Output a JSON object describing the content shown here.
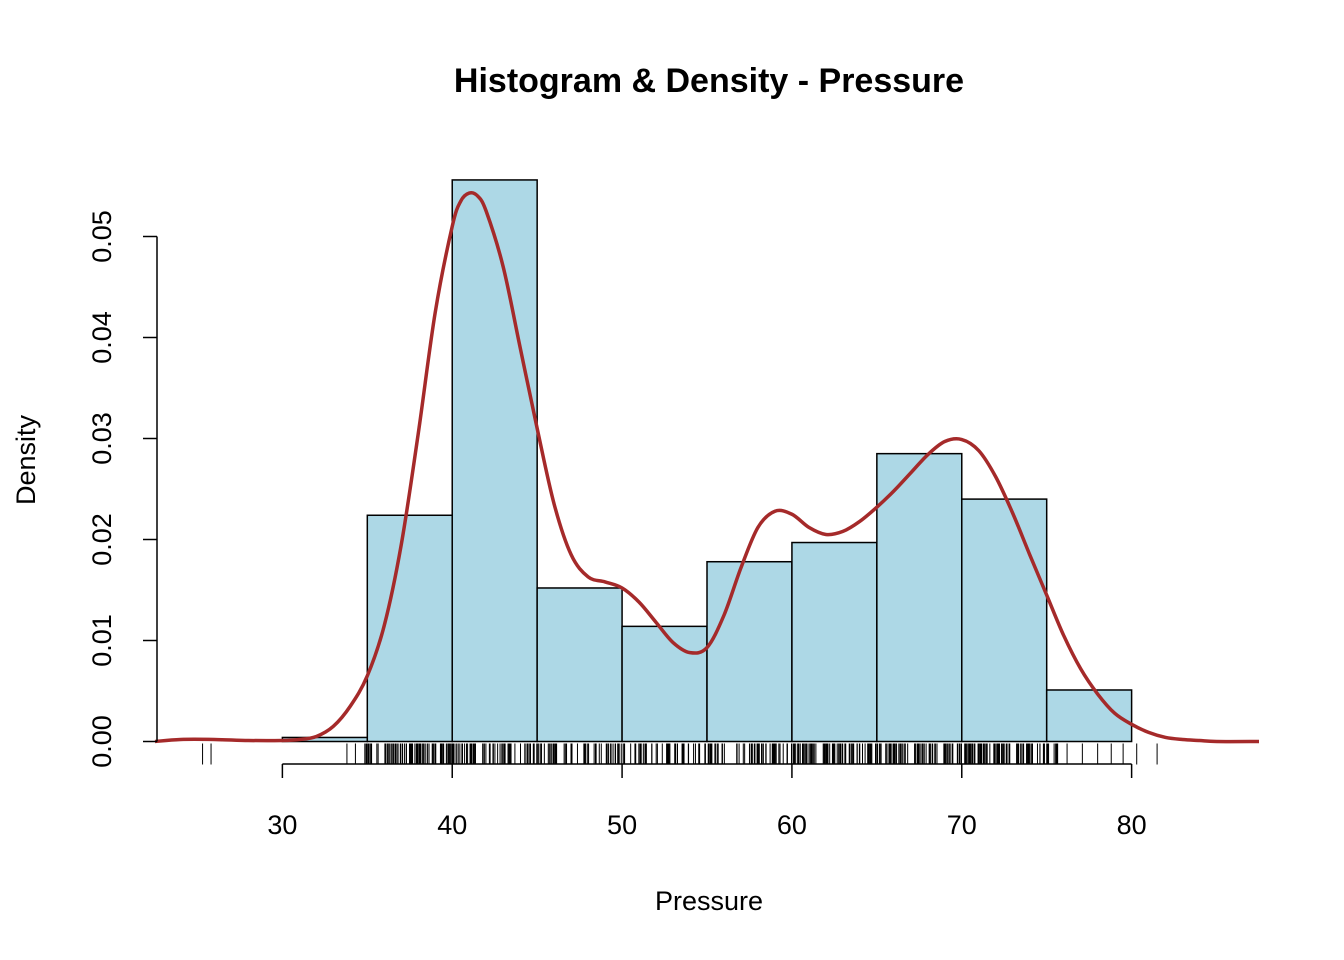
{
  "chart_data": {
    "type": "bar",
    "title": "Histogram & Density - Pressure",
    "xlabel": "Pressure",
    "ylabel": "Density",
    "xlim": [
      22.5,
      87.5
    ],
    "ylim": [
      0,
      0.058
    ],
    "x_ticks": [
      30,
      40,
      50,
      60,
      70,
      80
    ],
    "x_tick_labels": [
      "30",
      "40",
      "50",
      "60",
      "70",
      "80"
    ],
    "y_ticks": [
      0,
      0.01,
      0.02,
      0.03,
      0.04,
      0.05
    ],
    "y_tick_labels": [
      "0.00",
      "0.01",
      "0.02",
      "0.03",
      "0.04",
      "0.05"
    ],
    "grid": false,
    "histogram": {
      "bins": [
        [
          30,
          35
        ],
        [
          35,
          40
        ],
        [
          40,
          45
        ],
        [
          45,
          50
        ],
        [
          50,
          55
        ],
        [
          55,
          60
        ],
        [
          60,
          65
        ],
        [
          65,
          70
        ],
        [
          70,
          75
        ],
        [
          75,
          80
        ]
      ],
      "values": [
        0.0004,
        0.0224,
        0.0556,
        0.0152,
        0.0114,
        0.0178,
        0.0197,
        0.0285,
        0.024,
        0.0051
      ],
      "fill_color": "#ADD8E6",
      "border_color": "#000000"
    },
    "density": {
      "color": "#A52A2A",
      "x": [
        22.5,
        24,
        26,
        28,
        30,
        31,
        32,
        33,
        34,
        35,
        36,
        37,
        38,
        39,
        40,
        40.5,
        41,
        41.5,
        42,
        43,
        44,
        45,
        46,
        47,
        48,
        49,
        50,
        51,
        52,
        53,
        54,
        55,
        56,
        57,
        58,
        59,
        60,
        61,
        62,
        63,
        64,
        65,
        66,
        67,
        68,
        69,
        70,
        71,
        72,
        73,
        74,
        75,
        76,
        77,
        78,
        79,
        80,
        81,
        82,
        83,
        84,
        85,
        87.5
      ],
      "y": [
        0.0,
        0.0002,
        0.0002,
        0.0001,
        0.0001,
        0.0002,
        0.0005,
        0.0015,
        0.0035,
        0.0065,
        0.0115,
        0.0195,
        0.0305,
        0.0425,
        0.051,
        0.0535,
        0.0543,
        0.054,
        0.0525,
        0.047,
        0.039,
        0.031,
        0.0235,
        0.0185,
        0.0163,
        0.0158,
        0.0152,
        0.0138,
        0.0118,
        0.0098,
        0.0088,
        0.0093,
        0.0125,
        0.0172,
        0.0212,
        0.0228,
        0.0225,
        0.0212,
        0.0205,
        0.0208,
        0.0218,
        0.0232,
        0.0248,
        0.0266,
        0.0284,
        0.0297,
        0.0299,
        0.0288,
        0.0262,
        0.0226,
        0.0185,
        0.0145,
        0.0105,
        0.0072,
        0.0047,
        0.0028,
        0.0017,
        0.0009,
        0.0004,
        0.0002,
        0.0001,
        0.0,
        0.0
      ]
    },
    "rug": {
      "sparse_points": [
        25.3,
        25.8,
        33.8,
        34.3,
        76.2,
        77.1,
        78.0,
        78.8,
        79.5,
        80.3,
        81.5
      ],
      "dense_range": [
        34.8,
        75.8
      ],
      "dense_count": 520
    }
  }
}
